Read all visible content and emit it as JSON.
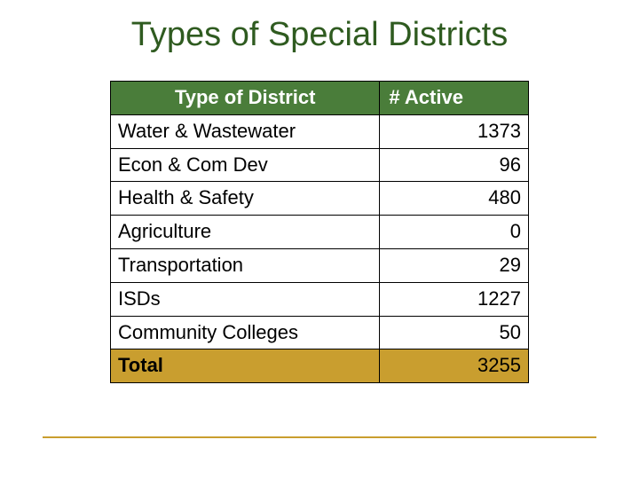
{
  "title": "Types of Special Districts",
  "table": {
    "header_bg": "#4a7d3a",
    "header_text_color": "#ffffff",
    "row_bg": "#ffffff",
    "total_row_bg": "#c99e2f",
    "border_color": "#000000",
    "columns": [
      {
        "label": "Type of District",
        "align_header": "center",
        "align_body": "left"
      },
      {
        "label": "# Active",
        "align_header": "left",
        "align_body": "right"
      }
    ],
    "rows": [
      {
        "type": "Water & Wastewater",
        "count": "1373"
      },
      {
        "type": "Econ & Com Dev",
        "count": "96"
      },
      {
        "type": "Health & Safety",
        "count": "480"
      },
      {
        "type": "Agriculture",
        "count": "0"
      },
      {
        "type": "Transportation",
        "count": "29"
      },
      {
        "type": "ISDs",
        "count": "1227"
      },
      {
        "type": "Community Colleges",
        "count": "50"
      }
    ],
    "total": {
      "type": "Total",
      "count": "3255"
    }
  },
  "accent_line_color": "#c99e2f"
}
